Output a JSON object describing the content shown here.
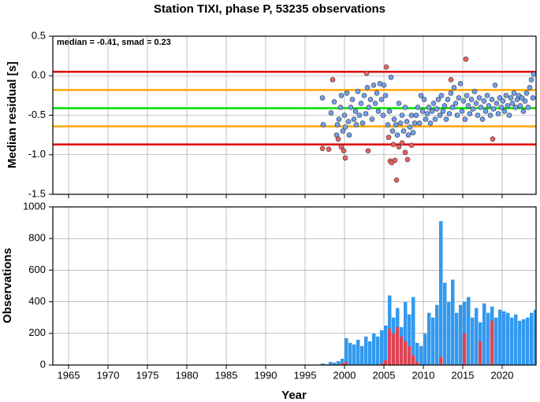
{
  "chart_data": [
    {
      "type": "scatter",
      "title": "Station TIXI, phase P, 53235 observations",
      "ylabel": "Median residual [s]",
      "annotation": "median = -0.41, smad = 0.23",
      "xlim": [
        1963,
        2024.3
      ],
      "xticks": [
        1965,
        1970,
        1975,
        1980,
        1985,
        1990,
        1995,
        2000,
        2005,
        2010,
        2015,
        2020
      ],
      "ylim": [
        -1.5,
        0.5
      ],
      "yticks": [
        0.5,
        {
          "value": 0,
          "label": "0.0"
        },
        {
          "value": -0.5,
          "label": "-0.5"
        },
        {
          "value": -1,
          "label": "-1.0"
        },
        {
          "value": -1.5,
          "label": "-1.5"
        }
      ],
      "grid": true,
      "hlines": [
        {
          "value": 0.05,
          "color": "#e00000"
        },
        {
          "value": -0.18,
          "color": "#ffa500"
        },
        {
          "value": -0.41,
          "color": "#00e000"
        },
        {
          "value": -0.64,
          "color": "#ffa500"
        },
        {
          "value": -0.87,
          "color": "#e00000"
        }
      ],
      "series": [
        {
          "color": "#6fa0f0",
          "x": [
            1997.2,
            1997.3,
            1998.3,
            1998.7,
            1999.0,
            1999.1,
            1999.3,
            1999.5,
            1999.6,
            1999.8,
            2000.0,
            2000.1,
            2000.3,
            2000.5,
            2000.6,
            2000.8,
            2001.0,
            2001.2,
            2001.4,
            2001.5,
            2001.7,
            2001.9,
            2002.1,
            2002.3,
            2002.5,
            2002.7,
            2002.9,
            2003.1,
            2003.3,
            2003.5,
            2003.7,
            2003.9,
            2004.1,
            2004.3,
            2004.5,
            2004.7,
            2004.9,
            2005.0,
            2005.2,
            2005.5,
            2005.7,
            2005.9,
            2006.1,
            2006.3,
            2006.5,
            2006.7,
            2006.9,
            2007.1,
            2007.3,
            2007.5,
            2007.7,
            2007.9,
            2008.1,
            2008.3,
            2008.5,
            2008.7,
            2008.9,
            2009.1,
            2009.3,
            2009.5,
            2009.7,
            2009.9,
            2010.1,
            2010.3,
            2010.5,
            2010.7,
            2010.9,
            2011.1,
            2011.3,
            2011.5,
            2011.7,
            2011.9,
            2012.1,
            2012.3,
            2012.5,
            2012.7,
            2012.9,
            2013.1,
            2013.3,
            2013.5,
            2013.7,
            2013.9,
            2014.1,
            2014.3,
            2014.5,
            2014.7,
            2014.9,
            2015.1,
            2015.3,
            2015.5,
            2015.7,
            2015.9,
            2016.1,
            2016.3,
            2016.5,
            2016.7,
            2016.9,
            2017.1,
            2017.3,
            2017.5,
            2017.7,
            2017.9,
            2018.1,
            2018.3,
            2018.5,
            2018.7,
            2018.9,
            2019.1,
            2019.3,
            2019.5,
            2019.7,
            2019.9,
            2020.1,
            2020.3,
            2020.5,
            2020.7,
            2020.9,
            2021.1,
            2021.3,
            2021.5,
            2021.7,
            2021.9,
            2022.1,
            2022.3,
            2022.5,
            2022.7,
            2022.9,
            2023.1,
            2023.3,
            2023.5,
            2023.7,
            2023.9,
            2024.0
          ],
          "values": [
            -0.28,
            -0.62,
            -0.47,
            -0.33,
            -0.75,
            -0.62,
            -0.55,
            -0.4,
            -0.25,
            -0.7,
            -0.5,
            -0.65,
            -0.22,
            -0.58,
            -0.75,
            -0.4,
            -0.3,
            -0.55,
            -0.45,
            -0.62,
            -0.2,
            -0.5,
            -0.35,
            -0.6,
            -0.25,
            -0.48,
            -0.15,
            -0.4,
            -0.3,
            -0.55,
            -0.12,
            -0.35,
            -0.22,
            -0.45,
            -0.1,
            -0.3,
            -0.5,
            -0.12,
            -0.25,
            -0.62,
            -0.45,
            -0.02,
            -0.7,
            -0.55,
            -0.62,
            -0.75,
            -0.35,
            -0.6,
            -0.5,
            -0.7,
            -0.4,
            -0.58,
            -0.75,
            -0.65,
            -0.5,
            -0.72,
            -0.6,
            -0.5,
            -0.4,
            -0.6,
            -0.25,
            -0.45,
            -0.3,
            -0.55,
            -0.48,
            -0.4,
            -0.6,
            -0.45,
            -0.35,
            -0.55,
            -0.42,
            -0.3,
            -0.5,
            -0.25,
            -0.45,
            -0.38,
            -0.55,
            -0.3,
            -0.48,
            -0.22,
            -0.4,
            -0.15,
            -0.35,
            -0.5,
            -0.28,
            -0.1,
            -0.45,
            -0.32,
            -0.55,
            -0.25,
            -0.38,
            -0.48,
            -0.3,
            -0.42,
            -0.2,
            -0.35,
            -0.5,
            -0.28,
            -0.4,
            -0.55,
            -0.32,
            -0.45,
            -0.25,
            -0.38,
            -0.5,
            -0.3,
            -0.42,
            -0.12,
            -0.35,
            -0.48,
            -0.28,
            -0.4,
            -0.32,
            -0.45,
            -0.25,
            -0.38,
            -0.5,
            -0.28,
            -0.35,
            -0.22,
            -0.4,
            -0.3,
            -0.25,
            -0.38,
            -0.28,
            -0.45,
            -0.32,
            -0.22,
            -0.4,
            -0.15,
            -0.05,
            -0.28,
            0.02
          ]
        },
        {
          "color": "#f06060",
          "x": [
            1997.2,
            1998.0,
            1998.5,
            1999.2,
            1999.6,
            1999.9,
            2000.1,
            2002.8,
            2003.0,
            2005.3,
            2005.6,
            2005.8,
            2006.0,
            2006.2,
            2006.4,
            2006.6,
            2006.9,
            2007.3,
            2007.7,
            2008.0,
            2008.5,
            2013.5,
            2015.4,
            2018.8
          ],
          "values": [
            -0.92,
            -0.93,
            -0.05,
            -0.8,
            -0.9,
            -0.95,
            -1.04,
            0.03,
            -0.95,
            0.11,
            -0.78,
            -1.08,
            -1.1,
            -0.87,
            -1.07,
            -1.32,
            -0.9,
            -0.85,
            -0.97,
            -1.06,
            -0.88,
            -0.05,
            0.21,
            -0.8
          ]
        }
      ]
    },
    {
      "type": "bar",
      "ylabel": "Observations",
      "xlabel": "Year",
      "xlim": [
        1963,
        2024.3
      ],
      "xticks": [
        1965,
        1970,
        1975,
        1980,
        1985,
        1990,
        1995,
        2000,
        2005,
        2010,
        2015,
        2020
      ],
      "ylim": [
        0,
        1000
      ],
      "yticks": [
        0,
        200,
        400,
        600,
        800,
        1000
      ],
      "grid": true,
      "x": [
        1997.0,
        1997.5,
        1998.0,
        1998.5,
        1999.0,
        1999.5,
        2000.0,
        2000.5,
        2001.0,
        2001.5,
        2002.0,
        2002.5,
        2003.0,
        2003.5,
        2004.0,
        2004.5,
        2005.0,
        2005.5,
        2006.0,
        2006.5,
        2007.0,
        2007.5,
        2008.0,
        2008.5,
        2009.0,
        2009.5,
        2010.0,
        2010.5,
        2011.0,
        2011.5,
        2012.0,
        2012.5,
        2013.0,
        2013.5,
        2014.0,
        2014.5,
        2015.0,
        2015.5,
        2016.0,
        2016.5,
        2017.0,
        2017.5,
        2018.0,
        2018.5,
        2019.0,
        2019.5,
        2020.0,
        2020.5,
        2021.0,
        2021.5,
        2022.0,
        2022.5,
        2023.0,
        2023.5,
        2024.0
      ],
      "series": [
        {
          "color": "#3399ee",
          "values": [
            10,
            5,
            20,
            15,
            25,
            40,
            170,
            140,
            130,
            160,
            120,
            180,
            150,
            200,
            180,
            220,
            250,
            440,
            300,
            360,
            240,
            400,
            320,
            430,
            140,
            120,
            200,
            330,
            300,
            380,
            910,
            520,
            400,
            540,
            330,
            380,
            400,
            430,
            300,
            360,
            270,
            390,
            330,
            370,
            300,
            350,
            340,
            330,
            300,
            320,
            280,
            290,
            300,
            330,
            350
          ]
        },
        {
          "color": "#dd4455",
          "values": [
            0,
            0,
            0,
            0,
            0,
            10,
            20,
            0,
            0,
            0,
            0,
            0,
            0,
            0,
            0,
            10,
            30,
            230,
            200,
            240,
            180,
            150,
            120,
            60,
            20,
            0,
            0,
            0,
            0,
            0,
            50,
            0,
            0,
            0,
            0,
            0,
            200,
            0,
            0,
            0,
            150,
            0,
            0,
            280,
            0,
            0,
            0,
            0,
            0,
            0,
            0,
            0,
            0,
            0,
            0
          ]
        }
      ]
    }
  ]
}
